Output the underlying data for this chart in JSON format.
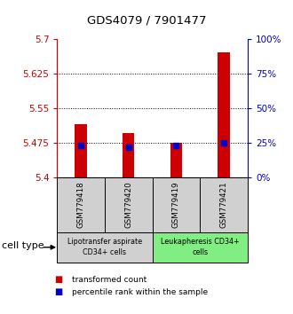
{
  "title": "GDS4079 / 7901477",
  "samples": [
    "GSM779418",
    "GSM779420",
    "GSM779419",
    "GSM779421"
  ],
  "red_values": [
    5.516,
    5.497,
    5.475,
    5.672
  ],
  "blue_values_pct": [
    23,
    22,
    23,
    25
  ],
  "ymin": 5.4,
  "ymax": 5.7,
  "yticks_left": [
    5.4,
    5.475,
    5.55,
    5.625,
    5.7
  ],
  "yticks_right_pct": [
    0,
    25,
    50,
    75,
    100
  ],
  "dotted_lines": [
    5.475,
    5.55,
    5.625
  ],
  "groups": [
    {
      "label": "Lipotransfer aspirate\nCD34+ cells",
      "indices": [
        0,
        1
      ],
      "color": "#d0d0d0"
    },
    {
      "label": "Leukapheresis CD34+\ncells",
      "indices": [
        2,
        3
      ],
      "color": "#80ee80"
    }
  ],
  "cell_type_label": "cell type",
  "bar_color": "#cc0000",
  "marker_color": "#0000cc",
  "bar_width": 0.25,
  "left_axis_color": "#cc0000",
  "right_axis_color": "#0000cc",
  "background_color": "#ffffff",
  "sample_box_color": "#d0d0d0",
  "legend_square_red": "transformed count",
  "legend_square_blue": "percentile rank within the sample"
}
